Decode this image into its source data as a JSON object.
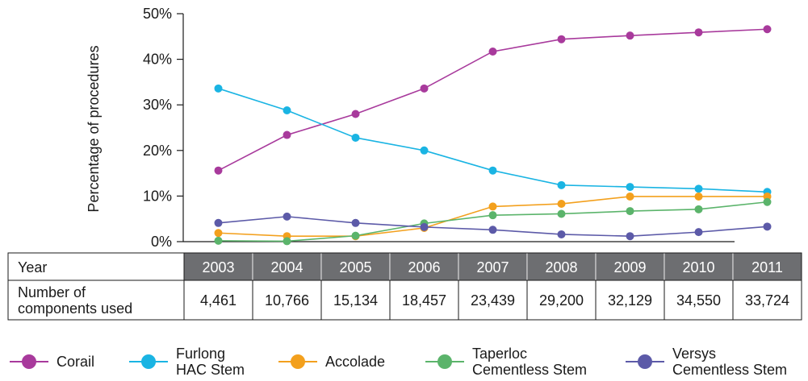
{
  "chart_data": {
    "type": "line",
    "ylabel": "Percentage of procedures",
    "ylim": [
      0,
      50
    ],
    "yticks": [
      "0%",
      "10%",
      "20%",
      "30%",
      "40%",
      "50%"
    ],
    "categories": [
      "2003",
      "2004",
      "2005",
      "2006",
      "2007",
      "2008",
      "2009",
      "2010",
      "2011"
    ],
    "series": [
      {
        "name": "Corail",
        "color": "#a83a9c",
        "values": [
          15.6,
          23.4,
          28.0,
          33.6,
          41.7,
          44.4,
          45.2,
          45.9,
          46.6
        ]
      },
      {
        "name": "Furlong HAC Stem",
        "color": "#1ab4e3",
        "values": [
          33.6,
          28.8,
          22.8,
          20.0,
          15.6,
          12.4,
          12.0,
          11.6,
          10.9
        ]
      },
      {
        "name": "Accolade",
        "color": "#f3a01d",
        "values": [
          1.9,
          1.2,
          1.2,
          3.0,
          7.7,
          8.3,
          9.9,
          9.9,
          9.9
        ]
      },
      {
        "name": "Taperloc Cementless Stem",
        "color": "#5bb46b",
        "values": [
          0.2,
          0.1,
          1.3,
          4.0,
          5.8,
          6.1,
          6.7,
          7.1,
          8.7
        ]
      },
      {
        "name": "Versys Cementless Stem",
        "color": "#5c5aa8",
        "values": [
          4.1,
          5.5,
          4.1,
          3.2,
          2.6,
          1.6,
          1.2,
          2.1,
          3.3
        ]
      }
    ],
    "legend_position": "bottom",
    "grid": false
  },
  "table": {
    "row1_label": "Year",
    "row2_label": "Number of components used",
    "years": [
      "2003",
      "2004",
      "2005",
      "2006",
      "2007",
      "2008",
      "2009",
      "2010",
      "2011"
    ],
    "counts": [
      "4,461",
      "10,766",
      "15,134",
      "18,457",
      "23,439",
      "29,200",
      "32,129",
      "34,550",
      "33,724"
    ],
    "header_fill": "#6d6e71",
    "header_text_color": "#ffffff"
  },
  "legend": [
    {
      "label": "Corail",
      "color": "#a83a9c"
    },
    {
      "label": "Furlong HAC Stem",
      "color": "#1ab4e3"
    },
    {
      "label": "Accolade",
      "color": "#f3a01d"
    },
    {
      "label": "Taperloc Cementless Stem",
      "color": "#5bb46b"
    },
    {
      "label": "Versys Cementless Stem",
      "color": "#5c5aa8"
    }
  ]
}
